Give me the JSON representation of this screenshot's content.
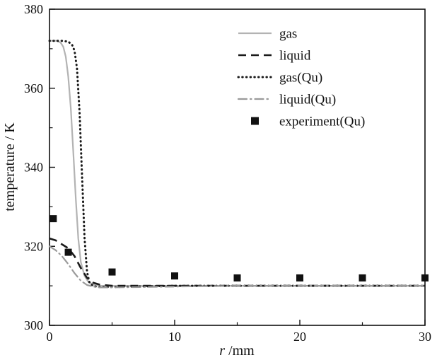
{
  "chart_data": {
    "type": "line",
    "title": "",
    "xlabel_var": "r",
    "xlabel_unit": "/mm",
    "ylabel": "temperature / K",
    "xlim": [
      0,
      30
    ],
    "ylim": [
      300,
      380
    ],
    "xticks": [
      0,
      10,
      20,
      30
    ],
    "xticks_minor": [
      5,
      15,
      25
    ],
    "yticks": [
      300,
      320,
      340,
      360,
      380
    ],
    "yticks_minor": [
      310,
      330,
      350,
      370
    ],
    "grid": false,
    "legend_position": "top-right",
    "frame_color": "#111111",
    "series": [
      {
        "name": "gas",
        "type": "line",
        "style": "solid",
        "color": "#b3b3b3",
        "width": 2.2,
        "points": [
          [
            0,
            372
          ],
          [
            0.6,
            372
          ],
          [
            0.9,
            371.5
          ],
          [
            1.1,
            370.5
          ],
          [
            1.3,
            368
          ],
          [
            1.5,
            363
          ],
          [
            1.7,
            355
          ],
          [
            1.9,
            344
          ],
          [
            2.1,
            332
          ],
          [
            2.3,
            322
          ],
          [
            2.5,
            316
          ],
          [
            2.8,
            312.5
          ],
          [
            3.1,
            311
          ],
          [
            3.5,
            310.3
          ],
          [
            4,
            310
          ],
          [
            6,
            310
          ],
          [
            10,
            310
          ],
          [
            15,
            310
          ],
          [
            20,
            310
          ],
          [
            25,
            310
          ],
          [
            30,
            310
          ]
        ]
      },
      {
        "name": "liquid",
        "type": "line",
        "style": "dash",
        "color": "#1a1a1a",
        "width": 2.6,
        "points": [
          [
            0,
            322
          ],
          [
            0.5,
            321.5
          ],
          [
            1,
            320.5
          ],
          [
            1.5,
            319.5
          ],
          [
            2,
            317.5
          ],
          [
            2.5,
            314.5
          ],
          [
            3,
            312
          ],
          [
            3.5,
            310.8
          ],
          [
            4,
            310.3
          ],
          [
            5,
            310
          ],
          [
            10,
            310
          ],
          [
            15,
            310
          ],
          [
            20,
            310
          ],
          [
            25,
            310
          ],
          [
            30,
            310
          ]
        ]
      },
      {
        "name": "gas(Qu)",
        "type": "line",
        "style": "dot",
        "color": "#1a1a1a",
        "width": 3,
        "points": [
          [
            0,
            372
          ],
          [
            1,
            372
          ],
          [
            1.5,
            371.8
          ],
          [
            1.8,
            371
          ],
          [
            2,
            369.5
          ],
          [
            2.2,
            365
          ],
          [
            2.4,
            354
          ],
          [
            2.6,
            338
          ],
          [
            2.8,
            322
          ],
          [
            3,
            313.5
          ],
          [
            3.2,
            310.8
          ],
          [
            3.5,
            309.9
          ],
          [
            4,
            309.7
          ],
          [
            5,
            309.7
          ],
          [
            10,
            310
          ],
          [
            15,
            310
          ],
          [
            20,
            310
          ],
          [
            25,
            310
          ],
          [
            30,
            310
          ]
        ]
      },
      {
        "name": "liquid(Qu)",
        "type": "line",
        "style": "dashdot",
        "color": "#9a9a9a",
        "width": 2.2,
        "points": [
          [
            0,
            320
          ],
          [
            0.5,
            319
          ],
          [
            1,
            317.5
          ],
          [
            1.5,
            315.5
          ],
          [
            2,
            313.2
          ],
          [
            2.5,
            311.3
          ],
          [
            3,
            310.2
          ],
          [
            3.5,
            309.8
          ],
          [
            4,
            309.6
          ],
          [
            5,
            309.6
          ],
          [
            10,
            309.8
          ],
          [
            15,
            310
          ],
          [
            20,
            310
          ],
          [
            25,
            310
          ],
          [
            30,
            310
          ]
        ]
      },
      {
        "name": "experiment(Qu)",
        "type": "scatter",
        "style": "square",
        "color": "#111111",
        "marker_size": 10,
        "points": [
          [
            0.3,
            327
          ],
          [
            1.5,
            318.5
          ],
          [
            5,
            313.5
          ],
          [
            10,
            312.5
          ],
          [
            15,
            312
          ],
          [
            20,
            312
          ],
          [
            25,
            312
          ],
          [
            30,
            312
          ]
        ]
      }
    ]
  }
}
